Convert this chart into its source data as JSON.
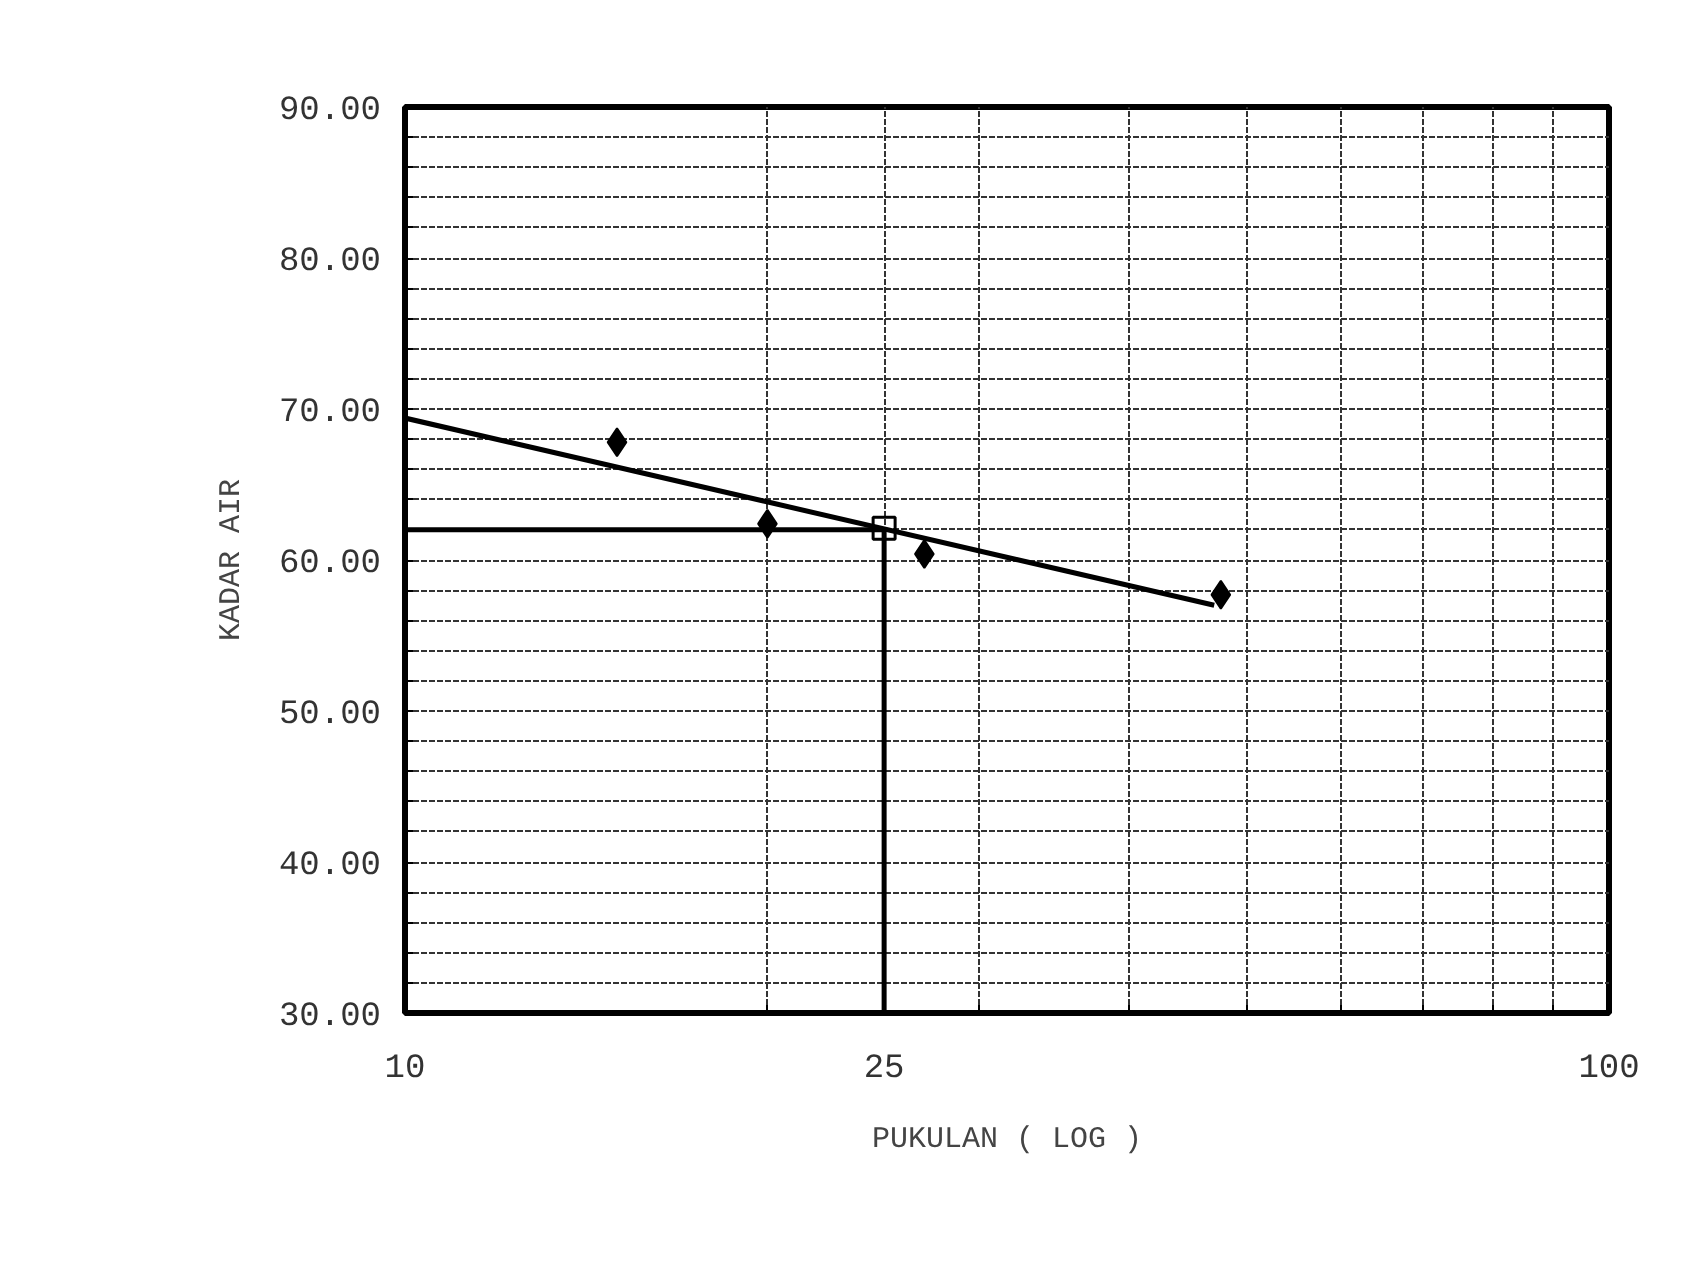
{
  "chart_data": {
    "type": "scatter",
    "xlabel": "PUKULAN ( LOG )",
    "ylabel": "KADAR AIR",
    "log": "x",
    "xlim": [
      10,
      100
    ],
    "ylim": [
      30,
      90
    ],
    "xticks": [
      10,
      {
        "value": 20,
        "label": null
      },
      25,
      {
        "value": 30,
        "label": null
      },
      {
        "value": 40,
        "label": null
      },
      {
        "value": 50,
        "label": null
      },
      {
        "value": 60,
        "label": null
      },
      {
        "value": 70,
        "label": null
      },
      {
        "value": 80,
        "label": null
      },
      {
        "value": 90,
        "label": null
      },
      100
    ],
    "yticks": [
      {
        "value": 30,
        "label": "30.00"
      },
      {
        "value": 32,
        "label": null
      },
      {
        "value": 34,
        "label": null
      },
      {
        "value": 36,
        "label": null
      },
      {
        "value": 38,
        "label": null
      },
      {
        "value": 40,
        "label": "40.00"
      },
      {
        "value": 42,
        "label": null
      },
      {
        "value": 44,
        "label": null
      },
      {
        "value": 46,
        "label": null
      },
      {
        "value": 48,
        "label": null
      },
      {
        "value": 50,
        "label": "50.00"
      },
      {
        "value": 52,
        "label": null
      },
      {
        "value": 54,
        "label": null
      },
      {
        "value": 56,
        "label": null
      },
      {
        "value": 58,
        "label": null
      },
      {
        "value": 60,
        "label": "60.00"
      },
      {
        "value": 62,
        "label": null
      },
      {
        "value": 64,
        "label": null
      },
      {
        "value": 66,
        "label": null
      },
      {
        "value": 68,
        "label": null
      },
      {
        "value": 70,
        "label": "70.00"
      },
      {
        "value": 72,
        "label": null
      },
      {
        "value": 74,
        "label": null
      },
      {
        "value": 76,
        "label": null
      },
      {
        "value": 78,
        "label": null
      },
      {
        "value": 80,
        "label": "80.00"
      },
      {
        "value": 82,
        "label": null
      },
      {
        "value": 84,
        "label": null
      },
      {
        "value": 86,
        "label": null
      },
      {
        "value": 88,
        "label": null
      },
      {
        "value": 90,
        "label": "90.00"
      }
    ],
    "grid": true,
    "series": [
      {
        "marker": "diamond",
        "color": "#000000",
        "x": [
          15,
          20,
          27,
          47.6
        ],
        "values": [
          67.8,
          62.4,
          60.4,
          57.7
        ]
      },
      {
        "type": "line",
        "marker": "none",
        "color": "#000000",
        "x": [
          10,
          47
        ],
        "values": [
          69.4,
          57.0
        ]
      },
      {
        "type": "line",
        "marker": "none",
        "color": "#000000",
        "x": [
          10,
          25,
          25
        ],
        "values": [
          62,
          62,
          30
        ]
      },
      {
        "marker": "square",
        "color": "#000000",
        "x": [
          25
        ],
        "values": [
          62.1
        ]
      }
    ]
  }
}
